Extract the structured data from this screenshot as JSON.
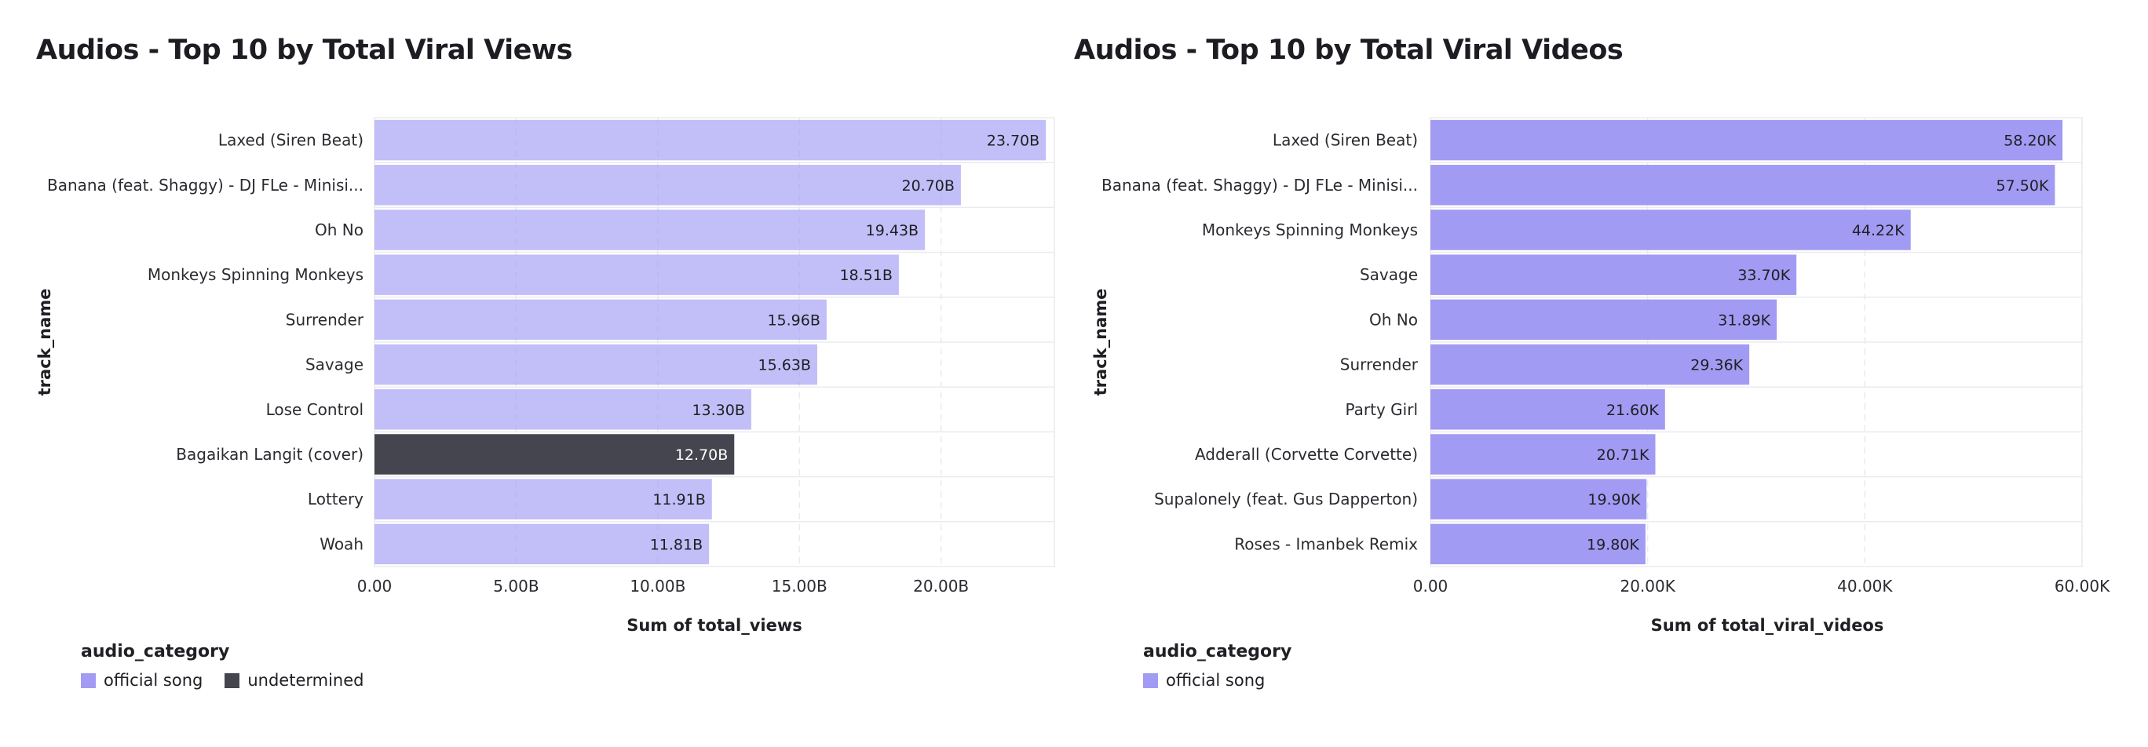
{
  "colors": {
    "official_song": "#a29bf3",
    "undetermined": "#45454f",
    "grid": "#ebebee"
  },
  "chart_data": [
    {
      "type": "bar",
      "orientation": "horizontal",
      "title": "Audios - Top 10 by Total Viral Views",
      "xlabel": "Sum of total_views",
      "ylabel": "track_name",
      "categories": [
        "Laxed (Siren Beat)",
        "Banana (feat. Shaggy) - DJ FLe - Minisi...",
        "Oh No",
        "Monkeys Spinning Monkeys",
        "Surrender",
        "Savage",
        "Lose Control",
        "Bagaikan Langit  (cover)",
        "Lottery",
        "Woah"
      ],
      "values": [
        23.7,
        20.7,
        19.43,
        18.51,
        15.96,
        15.63,
        13.3,
        12.7,
        11.91,
        11.81
      ],
      "value_labels": [
        "23.70B",
        "20.70B",
        "19.43B",
        "18.51B",
        "15.96B",
        "15.63B",
        "13.30B",
        "12.70B",
        "11.91B",
        "11.81B"
      ],
      "bar_categories": [
        "official song",
        "official song",
        "official song",
        "official song",
        "official song",
        "official song",
        "official song",
        "undetermined",
        "official song",
        "official song"
      ],
      "value_unit": "B",
      "xlim": [
        0,
        24
      ],
      "xticks": [
        0,
        5,
        10,
        15,
        20
      ],
      "xtick_labels": [
        "0.00",
        "5.00B",
        "10.00B",
        "15.00B",
        "20.00B"
      ],
      "bar_opacity": 0.65,
      "legend": {
        "title": "audio_category",
        "items": [
          "official song",
          "undetermined"
        ],
        "position": "bottom-left"
      }
    },
    {
      "type": "bar",
      "orientation": "horizontal",
      "title": "Audios - Top 10 by Total Viral Videos",
      "xlabel": "Sum of total_viral_videos",
      "ylabel": "track_name",
      "categories": [
        "Laxed (Siren Beat)",
        "Banana (feat. Shaggy) - DJ FLe - Minisi...",
        "Monkeys Spinning Monkeys",
        "Savage",
        "Oh No",
        "Surrender",
        "Party Girl",
        "Adderall (Corvette Corvette)",
        "Supalonely (feat. Gus Dapperton)",
        "Roses - Imanbek Remix"
      ],
      "values": [
        58.2,
        57.5,
        44.22,
        33.7,
        31.89,
        29.36,
        21.6,
        20.71,
        19.9,
        19.8
      ],
      "value_labels": [
        "58.20K",
        "57.50K",
        "44.22K",
        "33.70K",
        "31.89K",
        "29.36K",
        "21.60K",
        "20.71K",
        "19.90K",
        "19.80K"
      ],
      "bar_categories": [
        "official song",
        "official song",
        "official song",
        "official song",
        "official song",
        "official song",
        "official song",
        "official song",
        "official song",
        "official song"
      ],
      "value_unit": "K",
      "xlim": [
        0,
        60
      ],
      "xticks": [
        0,
        20,
        40,
        60
      ],
      "xtick_labels": [
        "0.00",
        "20.00K",
        "40.00K",
        "60.00K"
      ],
      "bar_opacity": 1,
      "legend": {
        "title": "audio_category",
        "items": [
          "official song"
        ],
        "position": "bottom-left"
      }
    }
  ]
}
